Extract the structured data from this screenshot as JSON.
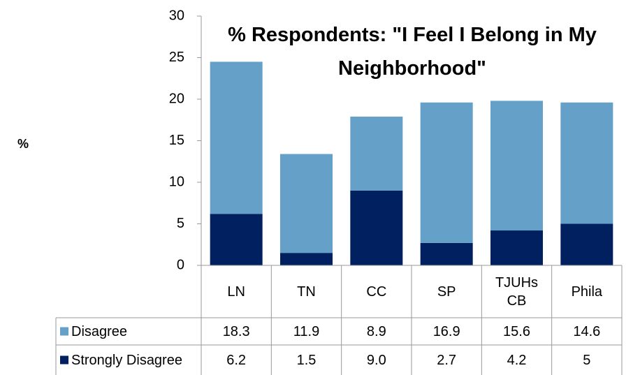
{
  "chart_data": {
    "type": "stacked_bar",
    "title": "% Respondents: \"I Feel I Belong in My Neighborhood\"",
    "y_label": "%",
    "categories": [
      "LN",
      "TN",
      "CC",
      "SP",
      "TJUHs CB",
      "Phila"
    ],
    "series": [
      {
        "name": "Disagree",
        "color": "#64a0c8",
        "values": [
          18.3,
          11.9,
          8.9,
          16.9,
          15.6,
          14.6
        ]
      },
      {
        "name": "Strongly Disagree",
        "color": "#002060",
        "values": [
          6.2,
          1.5,
          9.0,
          2.7,
          4.2,
          5
        ],
        "value_labels": [
          "6.2",
          "1.5",
          "9.0",
          "2.7",
          "4.2",
          "5"
        ]
      }
    ],
    "ylim": [
      0,
      30
    ],
    "yticks": [
      0,
      5,
      10,
      15,
      20,
      25,
      30
    ]
  }
}
